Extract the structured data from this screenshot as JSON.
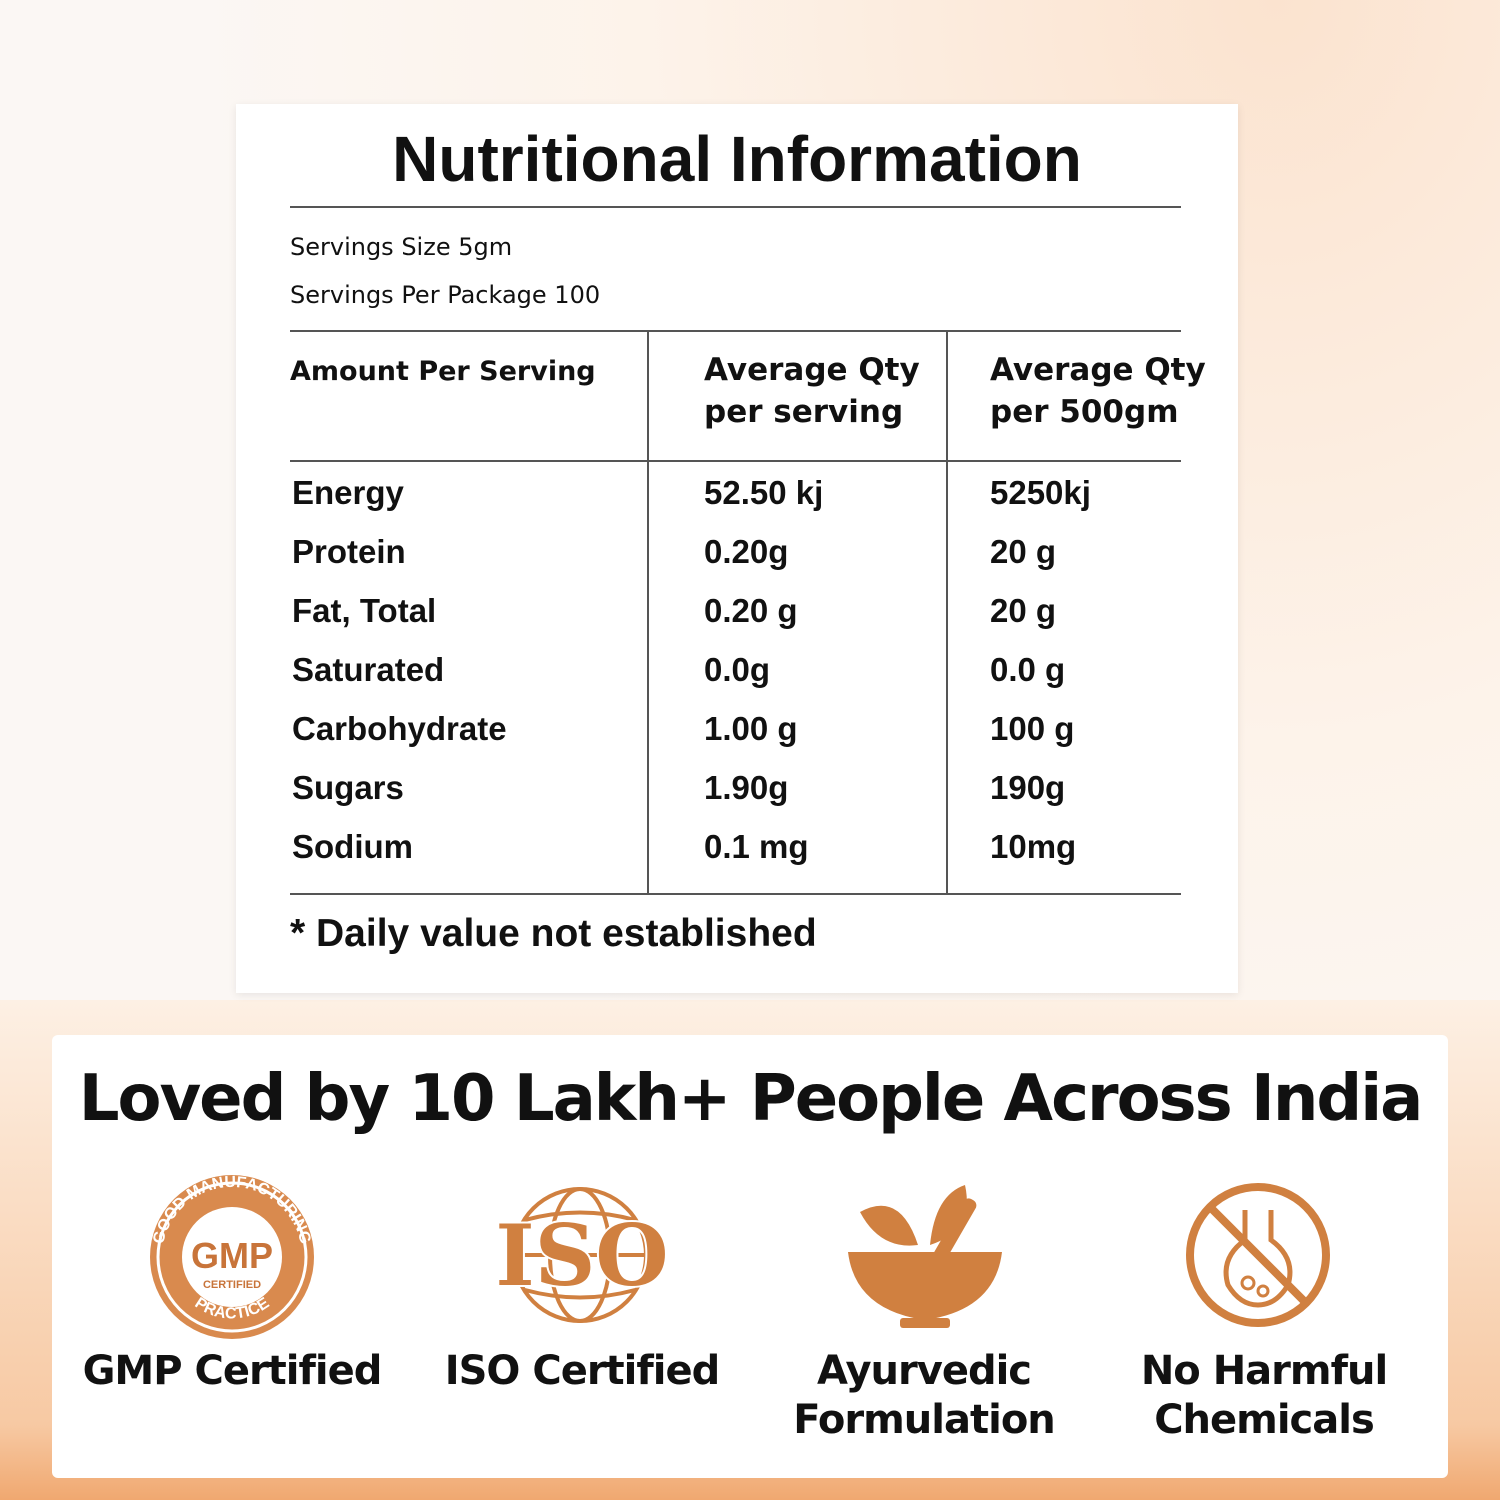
{
  "nutrition": {
    "title": "Nutritional Information",
    "serving_size": "Servings Size 5gm",
    "servings_per_package": "Servings Per Package 100",
    "table": {
      "headers": [
        "Amount Per Serving",
        [
          "Average Qty",
          "per serving"
        ],
        [
          "Average Qty",
          "per 500gm"
        ]
      ],
      "rows": [
        [
          "Energy",
          "52.50 kj",
          "5250kj"
        ],
        [
          "Protein",
          "0.20g",
          "20 g"
        ],
        [
          "Fat, Total",
          "0.20 g",
          "20 g"
        ],
        [
          "Saturated",
          "0.0g",
          "0.0 g"
        ],
        [
          "Carbohydrate",
          "1.00 g",
          "100 g"
        ],
        [
          "Sugars",
          "1.90g",
          "190g"
        ],
        [
          "Sodium",
          "0.1 mg",
          "10mg"
        ]
      ]
    },
    "footnote": "* Daily value not established"
  },
  "trust": {
    "title": "Loved by 10 Lakh+ People Across India",
    "badges": [
      {
        "label": [
          "GMP Certified"
        ],
        "icon_text": {
          "ring_top": "GOOD MANUFACTURING",
          "mark": "GMP",
          "sub": "CERTIFIED",
          "ring_bottom": "PRACTICE"
        }
      },
      {
        "label": [
          "ISO Certified"
        ],
        "icon_text": {
          "mark": "ISO"
        }
      },
      {
        "label": [
          "Ayurvedic",
          "Formulation"
        ]
      },
      {
        "label": [
          "No Harmful",
          "Chemicals"
        ]
      }
    ]
  }
}
